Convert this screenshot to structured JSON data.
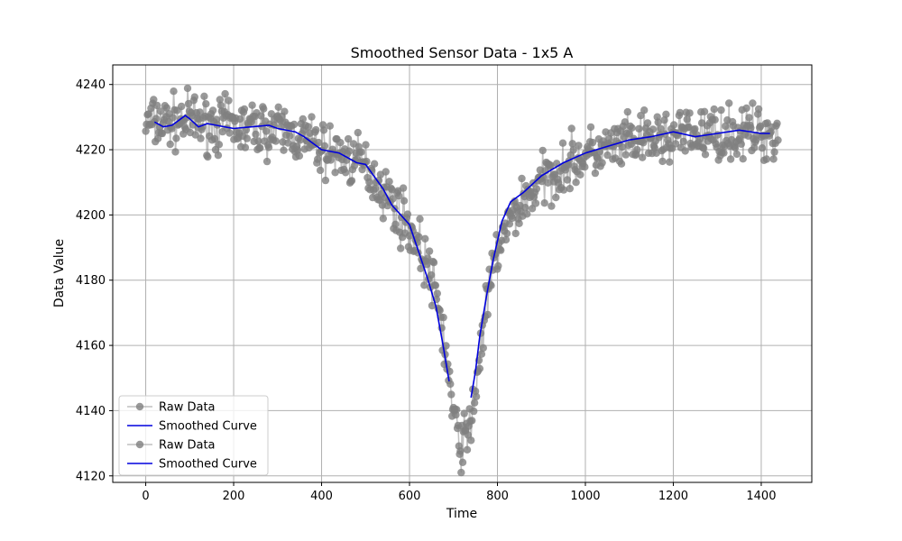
{
  "chart_data": {
    "type": "line",
    "title": "Smoothed Sensor Data - 1x5 A",
    "xlabel": "Time",
    "ylabel": "Data Value",
    "xlim": [
      -75,
      1515
    ],
    "ylim": [
      4118,
      4246
    ],
    "xticks": [
      0,
      200,
      400,
      600,
      800,
      1000,
      1200,
      1400
    ],
    "yticks": [
      4120,
      4140,
      4160,
      4180,
      4200,
      4220,
      4240
    ],
    "grid": true,
    "legend_position": "lower-left",
    "legend": [
      {
        "label": "Raw Data",
        "kind": "marker"
      },
      {
        "label": "Smoothed Curve",
        "kind": "line"
      },
      {
        "label": "Raw Data",
        "kind": "marker"
      },
      {
        "label": "Smoothed Curve",
        "kind": "line"
      }
    ],
    "colors": {
      "raw": "#808080",
      "smooth": "#0000dd",
      "grid": "#b0b0b0"
    },
    "raw_series": {
      "name": "Raw Data",
      "segments": [
        {
          "x_start": 0,
          "x_end": 695,
          "count": 350
        },
        {
          "x_start": 695,
          "x_end": 740,
          "count": 26
        },
        {
          "x_start": 740,
          "x_end": 1440,
          "count": 352
        }
      ],
      "anchors": [
        [
          0,
          4228
        ],
        [
          100,
          4229
        ],
        [
          200,
          4227
        ],
        [
          300,
          4226
        ],
        [
          350,
          4224
        ],
        [
          400,
          4220
        ],
        [
          450,
          4218
        ],
        [
          500,
          4215
        ],
        [
          550,
          4206
        ],
        [
          600,
          4196
        ],
        [
          640,
          4185
        ],
        [
          670,
          4170
        ],
        [
          690,
          4150
        ],
        [
          700,
          4138
        ],
        [
          715,
          4130
        ],
        [
          735,
          4133
        ],
        [
          750,
          4146
        ],
        [
          770,
          4168
        ],
        [
          800,
          4190
        ],
        [
          850,
          4203
        ],
        [
          900,
          4210
        ],
        [
          950,
          4215
        ],
        [
          1000,
          4218
        ],
        [
          1100,
          4222
        ],
        [
          1200,
          4224
        ],
        [
          1300,
          4225
        ],
        [
          1440,
          4225
        ]
      ],
      "noise_amplitude": 4
    },
    "smoothed_series": [
      {
        "name": "Smoothed Curve",
        "x": [
          20,
          40,
          60,
          80,
          90,
          100,
          120,
          140,
          160,
          200,
          240,
          280,
          300,
          340,
          360,
          400,
          440,
          480,
          500,
          540,
          560,
          580,
          600,
          620,
          640,
          660,
          675,
          690
        ],
        "y": [
          4228.5,
          4227,
          4227.5,
          4229.5,
          4230.5,
          4229.5,
          4227,
          4228,
          4227.5,
          4226.5,
          4227,
          4227.5,
          4226.5,
          4225.5,
          4224,
          4220,
          4219,
          4216,
          4215.5,
          4208,
          4203,
          4200,
          4197,
          4189,
          4181,
          4172,
          4161,
          4149
        ]
      },
      {
        "name": "Smoothed Curve",
        "x": [
          740,
          750,
          760,
          775,
          790,
          810,
          830,
          860,
          900,
          950,
          1000,
          1050,
          1100,
          1150,
          1200,
          1250,
          1300,
          1350,
          1400,
          1420
        ],
        "y": [
          4144,
          4152,
          4163,
          4175,
          4186,
          4198,
          4204,
          4207,
          4212,
          4216,
          4219,
          4221,
          4223,
          4224,
          4225.5,
          4224,
          4225,
          4226,
          4225,
          4225
        ]
      }
    ]
  }
}
